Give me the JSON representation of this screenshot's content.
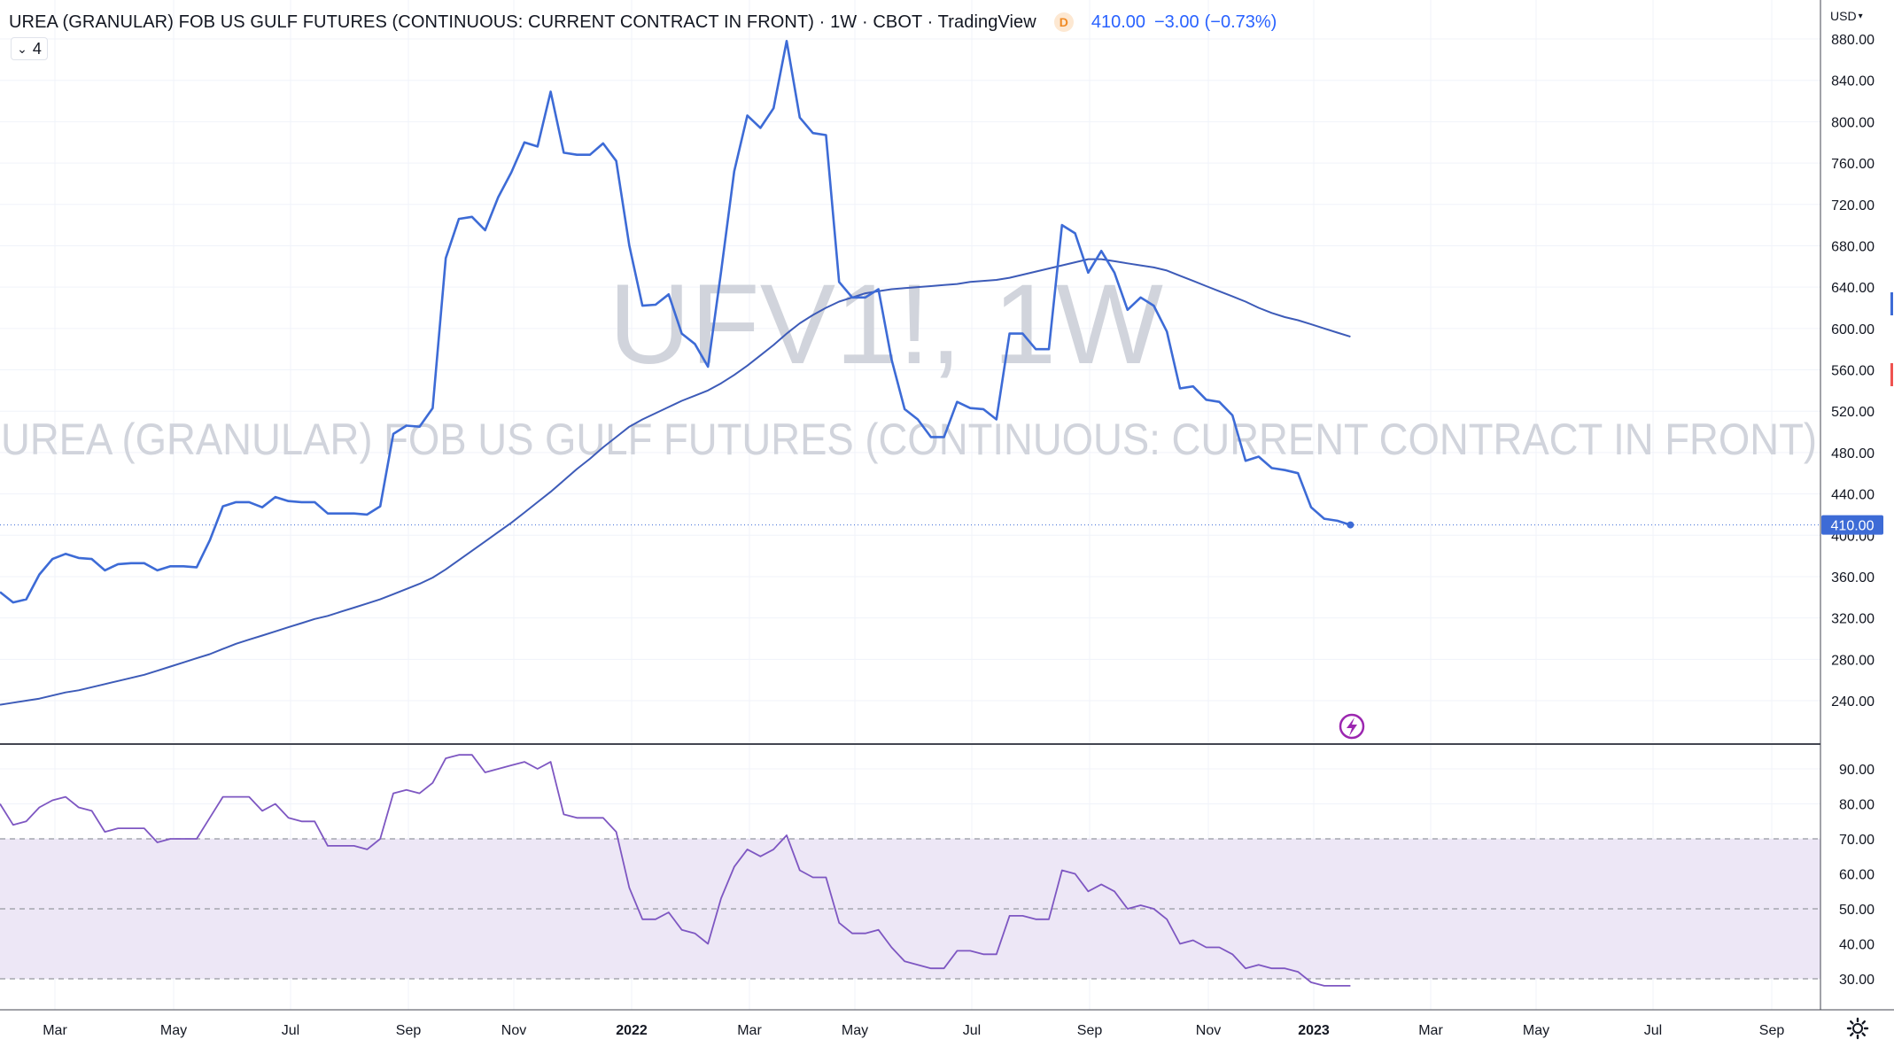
{
  "header": {
    "title": "UREA (GRANULAR) FOB US GULF FUTURES (CONTINUOUS: CURRENT CONTRACT IN FRONT) · 1W · CBOT · TradingView",
    "delay_badge": "D",
    "last_price": "410.00",
    "change": "−3.00",
    "change_pct": "(−0.73%)",
    "collapse_count": "4"
  },
  "currency": "USD",
  "watermark": {
    "symbol": "UFV1!, 1W",
    "name": "UREA (GRANULAR) FOB US GULF FUTURES (CONTINUOUS: CURRENT CONTRACT IN FRONT)"
  },
  "colors": {
    "price_line": "#3d6bd6",
    "ma_line": "#3d5bb8",
    "rsi_line": "#7e57c2",
    "rsi_band": "#ede7f6",
    "price_label_bg": "#3d6bd6",
    "grid": "#f0f3fa",
    "axis_text": "#131722",
    "watermark": "#d1d4dc"
  },
  "chart_data": [
    {
      "type": "line",
      "title": "UREA (GRANULAR) FOB US GULF FUTURES (CONTINUOUS: CURRENT CONTRACT IN FRONT) · 1W · CBOT · TradingView",
      "x_ticks": [
        "Mar",
        "May",
        "Jul",
        "Sep",
        "Nov",
        "2022",
        "Mar",
        "May",
        "Jul",
        "Sep",
        "Nov",
        "2023",
        "Mar",
        "May",
        "Jul",
        "Sep"
      ],
      "y_ticks": [
        "240.00",
        "280.00",
        "320.00",
        "360.00",
        "400.00",
        "440.00",
        "480.00",
        "520.00",
        "560.00",
        "600.00",
        "640.00",
        "680.00",
        "720.00",
        "760.00",
        "800.00",
        "840.00",
        "880.00"
      ],
      "ylim": [
        205,
        900
      ],
      "last_price_label": "410.00",
      "series": [
        {
          "values": [
            345,
            335,
            338,
            362,
            377,
            382,
            378,
            377,
            366,
            372,
            373,
            373,
            366,
            370,
            370,
            369,
            395,
            428,
            432,
            432,
            427,
            437,
            433,
            432,
            432,
            421,
            421,
            421,
            420,
            428,
            498,
            506,
            505,
            523,
            668,
            706,
            708,
            695,
            727,
            751,
            780,
            776,
            829,
            770,
            768,
            768,
            779,
            762,
            680,
            622,
            623,
            633,
            595,
            585,
            563,
            655,
            752,
            806,
            794,
            813,
            878,
            804,
            789,
            787,
            645,
            630,
            630,
            638,
            570,
            522,
            512,
            495,
            495,
            529,
            523,
            522,
            512,
            595,
            595,
            580,
            580,
            700,
            692,
            654,
            675,
            654,
            618,
            630,
            622,
            597,
            542,
            544,
            531,
            529,
            516,
            472,
            476,
            465,
            463,
            460,
            427,
            416,
            414,
            410
          ]
        },
        {
          "values": [
            236,
            238,
            240,
            242,
            245,
            248,
            250,
            253,
            256,
            259,
            262,
            265,
            269,
            273,
            277,
            281,
            285,
            290,
            295,
            299,
            303,
            307,
            311,
            315,
            319,
            322,
            326,
            330,
            334,
            338,
            343,
            348,
            353,
            359,
            367,
            376,
            385,
            394,
            403,
            412,
            422,
            432,
            442,
            453,
            464,
            474,
            485,
            495,
            505,
            512,
            518,
            524,
            530,
            535,
            540,
            547,
            555,
            564,
            574,
            584,
            595,
            605,
            613,
            620,
            626,
            630,
            634,
            636,
            638,
            639,
            640,
            641,
            642,
            643,
            645,
            646,
            647,
            649,
            652,
            655,
            658,
            661,
            664,
            667,
            667,
            665,
            663,
            661,
            659,
            656,
            651,
            646,
            641,
            636,
            631,
            626,
            620,
            615,
            611,
            608,
            604,
            600,
            596,
            592
          ]
        }
      ]
    },
    {
      "type": "line",
      "y_ticks": [
        "30.00",
        "40.00",
        "50.00",
        "60.00",
        "70.00",
        "80.00",
        "90.00"
      ],
      "ylim": [
        25,
        97
      ],
      "bands": [
        30,
        50,
        70
      ],
      "series": [
        {
          "values": [
            80,
            74,
            75,
            79,
            81,
            82,
            79,
            78,
            72,
            73,
            73,
            73,
            69,
            70,
            70,
            70,
            76,
            82,
            82,
            82,
            78,
            80,
            76,
            75,
            75,
            68,
            68,
            68,
            67,
            70,
            83,
            84,
            83,
            86,
            93,
            94,
            94,
            89,
            90,
            91,
            92,
            90,
            92,
            77,
            76,
            76,
            76,
            72,
            56,
            47,
            47,
            49,
            44,
            43,
            40,
            53,
            62,
            67,
            65,
            67,
            71,
            61,
            59,
            59,
            46,
            43,
            43,
            44,
            39,
            35,
            34,
            33,
            33,
            38,
            38,
            37,
            37,
            48,
            48,
            47,
            47,
            61,
            60,
            55,
            57,
            55,
            50,
            51,
            50,
            47,
            40,
            41,
            39,
            39,
            37,
            33,
            34,
            33,
            33,
            32,
            29,
            28,
            28,
            28
          ]
        }
      ]
    }
  ]
}
